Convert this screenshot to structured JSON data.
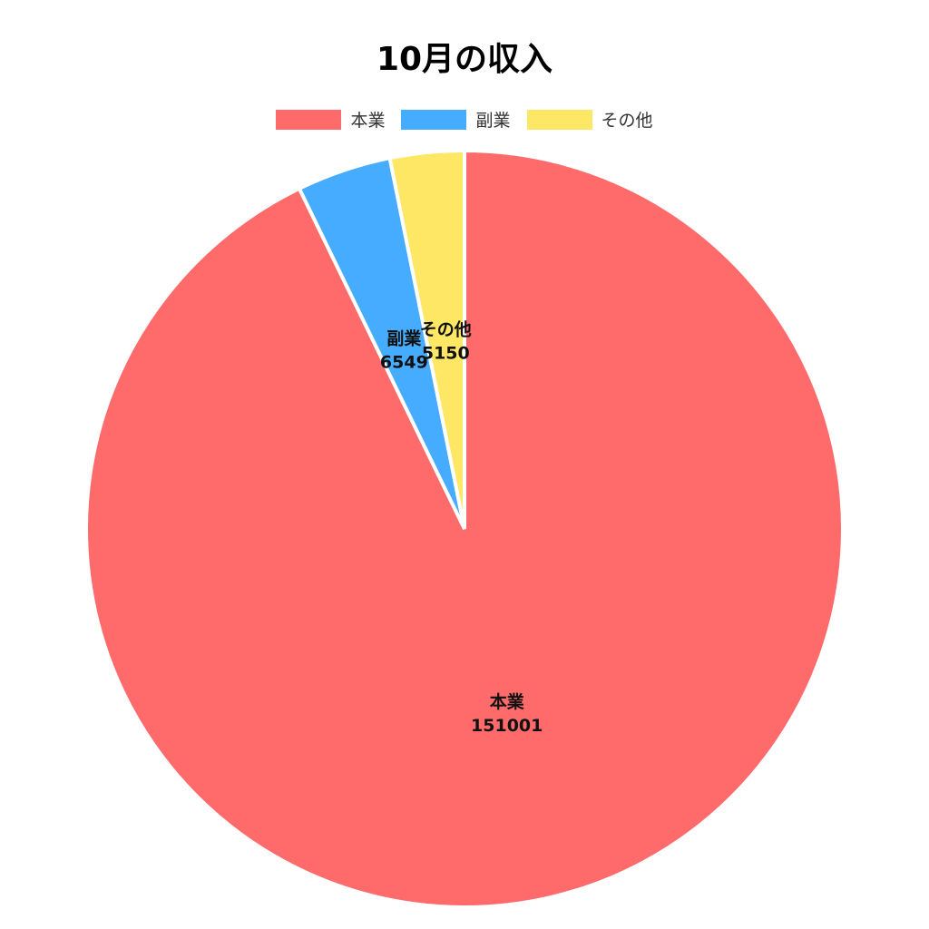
{
  "chart_data": {
    "type": "pie",
    "title": "10月の収入",
    "categories": [
      "本業",
      "副業",
      "その他"
    ],
    "values": [
      151001,
      6549,
      5150
    ],
    "colors": [
      "#ff6b6b",
      "#45acff",
      "#ffe766"
    ],
    "legend_position": "top",
    "start_angle": "top, clockwise",
    "data_labels": true
  }
}
